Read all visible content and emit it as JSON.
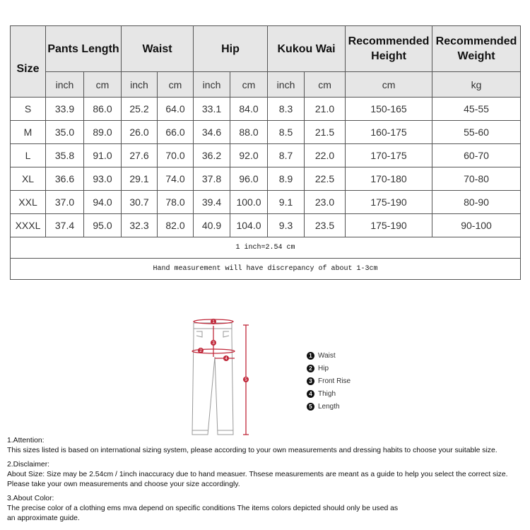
{
  "table": {
    "headers": {
      "size": "Size",
      "groups": [
        "Pants Length",
        "Waist",
        "Hip",
        "Kukou Wai",
        "Recommended Height",
        "Recommended Weight"
      ],
      "units": [
        "inch",
        "cm",
        "inch",
        "cm",
        "inch",
        "cm",
        "inch",
        "cm",
        "cm",
        "kg"
      ]
    },
    "rows": [
      [
        "S",
        "33.9",
        "86.0",
        "25.2",
        "64.0",
        "33.1",
        "84.0",
        "8.3",
        "21.0",
        "150-165",
        "45-55"
      ],
      [
        "M",
        "35.0",
        "89.0",
        "26.0",
        "66.0",
        "34.6",
        "88.0",
        "8.5",
        "21.5",
        "160-175",
        "55-60"
      ],
      [
        "L",
        "35.8",
        "91.0",
        "27.6",
        "70.0",
        "36.2",
        "92.0",
        "8.7",
        "22.0",
        "170-175",
        "60-70"
      ],
      [
        "XL",
        "36.6",
        "93.0",
        "29.1",
        "74.0",
        "37.8",
        "96.0",
        "8.9",
        "22.5",
        "170-180",
        "70-80"
      ],
      [
        "XXL",
        "37.0",
        "94.0",
        "30.7",
        "78.0",
        "39.4",
        "100.0",
        "9.1",
        "23.0",
        "175-190",
        "80-90"
      ],
      [
        "XXXL",
        "37.4",
        "95.0",
        "32.3",
        "82.0",
        "40.9",
        "104.0",
        "9.3",
        "23.5",
        "175-190",
        "90-100"
      ]
    ],
    "notes": [
      "1 inch=2.54 cm",
      "Hand measurement will have discrepancy of about 1-3cm"
    ]
  },
  "diagram": {
    "markers": [
      "1",
      "2",
      "3",
      "4",
      "5"
    ],
    "accent": "#c0283a",
    "legend": [
      {
        "num": "1",
        "label": "Waist"
      },
      {
        "num": "2",
        "label": "Hip"
      },
      {
        "num": "3",
        "label": "Front Rise"
      },
      {
        "num": "4",
        "label": "Thigh"
      },
      {
        "num": "5",
        "label": "Length"
      }
    ]
  },
  "notes": [
    {
      "title": "1.Attention:",
      "lines": [
        "This sizes listed is based on international sizing system, please according to your own measurements and dressing habits to choose your suitable size."
      ]
    },
    {
      "title": "2.Disclaimer:",
      "lines": [
        "About Size: Size may be 2.54cm / 1inch inaccuracy due to hand measuer. Thsese measurements are meant as a guide to help you select the correct size.",
        "Please take your own measurements and choose your size accordingly."
      ]
    },
    {
      "title": "3.About Color:",
      "lines": [
        "The precise color of a clothing ems mva depend on specific conditions The items colors depicted should only be used as",
        "an approximate guide."
      ]
    }
  ]
}
